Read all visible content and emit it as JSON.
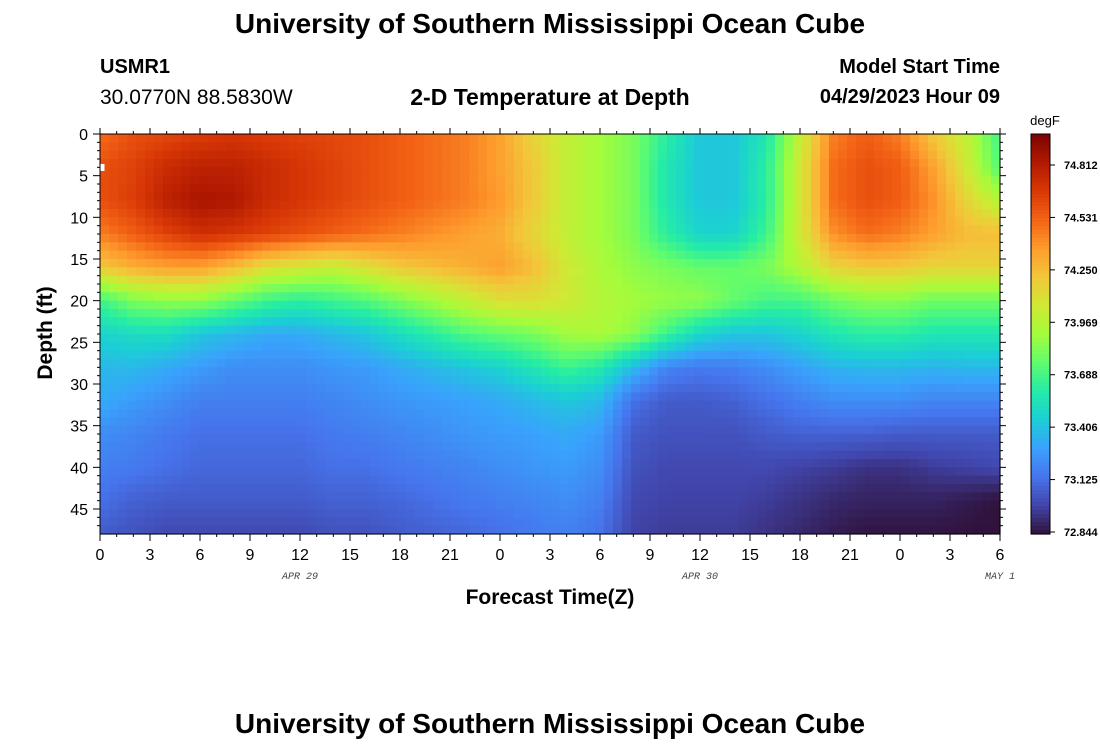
{
  "header": {
    "title": "University of Southern Mississippi Ocean Cube",
    "station": "USMR1",
    "latlon": "30.0770N  88.5830W",
    "subtitle": "2-D Temperature at Depth",
    "model_start_label": "Model Start Time",
    "model_start_value": "04/29/2023 Hour 09"
  },
  "footer": {
    "title": "University of Southern Mississippi Ocean Cube"
  },
  "chart_data": {
    "type": "heatmap",
    "title": "2-D Temperature at Depth",
    "xlabel": "Forecast Time(Z)",
    "ylabel": "Depth (ft)",
    "x_tick_labels": [
      "0",
      "3",
      "6",
      "9",
      "12",
      "15",
      "18",
      "21",
      "0",
      "3",
      "6",
      "9",
      "12",
      "15",
      "18",
      "21",
      "0",
      "3",
      "6"
    ],
    "date_labels": [
      {
        "label": "APR 29",
        "x_hours": 12
      },
      {
        "label": "APR 30",
        "x_hours": 36
      },
      {
        "label": "MAY 1",
        "x_hours": 54
      }
    ],
    "xlim_hours": [
      0,
      54
    ],
    "y_ticks": [
      0,
      5,
      10,
      15,
      20,
      25,
      30,
      35,
      40,
      45
    ],
    "ylim": [
      0,
      48
    ],
    "colorbar_unit": "degF",
    "colorbar_ticks": [
      "74.812",
      "74.531",
      "74.250",
      "73.969",
      "73.688",
      "73.406",
      "73.125",
      "72.844"
    ],
    "vmin": 72.75,
    "vmax": 74.95,
    "colormap": [
      "#30123b",
      "#4145ab",
      "#4675ed",
      "#39a2fc",
      "#1bcfd4",
      "#24eca6",
      "#61fc6c",
      "#a4fc3b",
      "#d1e834",
      "#f3c63a",
      "#fe9b2d",
      "#f36315",
      "#d93806",
      "#b11901",
      "#7a0402"
    ],
    "time_hours": [
      0,
      2,
      4,
      6,
      8,
      10,
      12,
      14,
      16,
      18,
      20,
      22,
      24,
      26,
      28,
      30,
      32,
      34,
      36,
      38,
      40,
      42,
      44,
      46,
      48,
      50,
      52,
      54
    ],
    "depths_ft": [
      0,
      4,
      8,
      12,
      16,
      20,
      24,
      28,
      32,
      36,
      40,
      44,
      48
    ],
    "temperature_degF": [
      [
        74.45,
        74.55,
        74.58,
        74.62,
        74.65,
        74.62,
        74.6,
        74.58,
        74.55,
        74.5,
        74.45,
        74.4,
        74.3,
        74.1,
        73.95,
        73.85,
        73.75,
        73.55,
        73.35,
        73.35,
        73.5,
        73.95,
        74.4,
        74.5,
        74.4,
        74.15,
        73.95,
        73.6
      ],
      [
        74.55,
        74.6,
        74.7,
        74.75,
        74.75,
        74.7,
        74.65,
        74.6,
        74.55,
        74.5,
        74.45,
        74.4,
        74.3,
        74.15,
        73.95,
        73.85,
        73.75,
        73.5,
        73.35,
        73.35,
        73.55,
        74.0,
        74.45,
        74.55,
        74.5,
        74.3,
        74.0,
        73.65
      ],
      [
        74.55,
        74.62,
        74.75,
        74.82,
        74.8,
        74.7,
        74.65,
        74.6,
        74.55,
        74.5,
        74.45,
        74.4,
        74.32,
        74.15,
        73.95,
        73.85,
        73.75,
        73.5,
        73.35,
        73.35,
        73.55,
        74.0,
        74.45,
        74.55,
        74.5,
        74.35,
        74.1,
        73.9
      ],
      [
        74.4,
        74.5,
        74.6,
        74.68,
        74.65,
        74.6,
        74.55,
        74.5,
        74.45,
        74.4,
        74.35,
        74.3,
        74.25,
        74.1,
        73.95,
        73.85,
        73.75,
        73.55,
        73.4,
        73.4,
        73.6,
        74.0,
        74.35,
        74.45,
        74.4,
        74.3,
        74.2,
        74.2
      ],
      [
        74.15,
        74.25,
        74.3,
        74.3,
        74.2,
        74.05,
        74.0,
        73.95,
        74.05,
        74.15,
        74.2,
        74.25,
        74.3,
        74.2,
        74.0,
        73.88,
        73.8,
        73.75,
        73.7,
        73.7,
        73.75,
        73.9,
        74.1,
        74.15,
        74.15,
        74.1,
        74.1,
        74.1
      ],
      [
        73.6,
        73.75,
        73.8,
        73.8,
        73.7,
        73.6,
        73.55,
        73.6,
        73.65,
        73.75,
        73.85,
        73.95,
        74.05,
        74.05,
        74.0,
        73.9,
        73.85,
        73.82,
        73.8,
        73.7,
        73.62,
        73.62,
        73.72,
        73.78,
        73.78,
        73.72,
        73.72,
        73.72
      ],
      [
        73.4,
        73.45,
        73.45,
        73.35,
        73.3,
        73.25,
        73.25,
        73.3,
        73.35,
        73.45,
        73.55,
        73.65,
        73.7,
        73.75,
        73.85,
        73.88,
        73.8,
        73.6,
        73.42,
        73.35,
        73.35,
        73.4,
        73.5,
        73.55,
        73.55,
        73.5,
        73.5,
        73.5
      ],
      [
        73.3,
        73.3,
        73.25,
        73.2,
        73.15,
        73.15,
        73.15,
        73.18,
        73.2,
        73.25,
        73.3,
        73.35,
        73.4,
        73.5,
        73.6,
        73.52,
        73.3,
        73.12,
        73.08,
        73.1,
        73.15,
        73.22,
        73.28,
        73.3,
        73.3,
        73.28,
        73.3,
        73.3
      ],
      [
        73.25,
        73.2,
        73.15,
        73.1,
        73.1,
        73.1,
        73.1,
        73.12,
        73.15,
        73.18,
        73.2,
        73.22,
        73.25,
        73.3,
        73.35,
        73.3,
        73.05,
        72.98,
        72.98,
        73.0,
        73.05,
        73.1,
        73.15,
        73.15,
        73.15,
        73.12,
        73.12,
        73.12
      ],
      [
        73.15,
        73.12,
        73.08,
        73.05,
        73.05,
        73.05,
        73.05,
        73.08,
        73.1,
        73.12,
        73.15,
        73.18,
        73.2,
        73.22,
        73.25,
        73.2,
        72.98,
        72.95,
        72.95,
        72.95,
        72.98,
        73.0,
        73.0,
        73.0,
        72.98,
        72.98,
        72.98,
        72.98
      ],
      [
        73.1,
        73.08,
        73.05,
        73.02,
        73.02,
        73.02,
        73.02,
        73.05,
        73.05,
        73.08,
        73.1,
        73.12,
        73.15,
        73.18,
        73.2,
        73.15,
        72.95,
        72.92,
        72.92,
        72.92,
        72.92,
        72.9,
        72.88,
        72.85,
        72.85,
        72.88,
        72.9,
        72.92
      ],
      [
        73.05,
        73.0,
        72.98,
        72.98,
        72.98,
        72.98,
        72.98,
        73.0,
        73.0,
        73.02,
        73.05,
        73.08,
        73.1,
        73.12,
        73.15,
        73.1,
        72.92,
        72.9,
        72.9,
        72.9,
        72.88,
        72.85,
        72.82,
        72.8,
        72.8,
        72.8,
        72.78,
        72.75
      ],
      [
        72.98,
        72.95,
        72.92,
        72.92,
        72.92,
        72.92,
        72.92,
        72.95,
        72.95,
        72.98,
        73.0,
        73.02,
        73.05,
        73.08,
        73.1,
        73.05,
        72.9,
        72.88,
        72.88,
        72.88,
        72.85,
        72.82,
        72.78,
        72.76,
        72.76,
        72.76,
        72.75,
        72.75
      ]
    ]
  }
}
